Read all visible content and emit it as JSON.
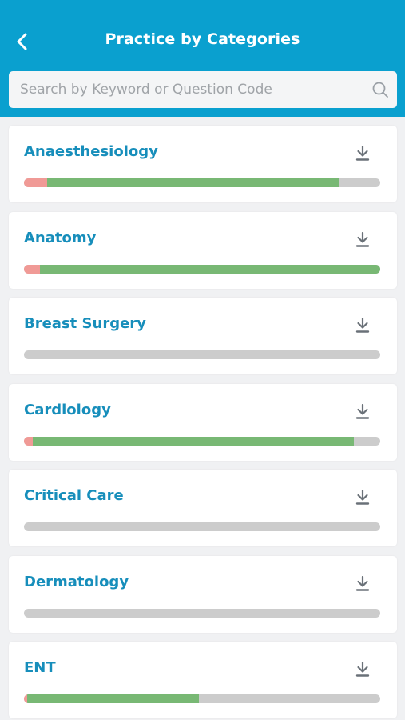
{
  "header": {
    "title": "Practice by Categories",
    "back_icon": "chevron-left-icon"
  },
  "search": {
    "placeholder": "Search by Keyword or Question Code",
    "value": "",
    "icon": "search-icon"
  },
  "colors": {
    "header": "#0aa0cf",
    "category_title": "#178ebb",
    "wrong": "#f09a96",
    "correct": "#78b874",
    "unanswered": "#cccccc"
  },
  "categories": [
    {
      "name": "Anaesthesiology",
      "icon": "download-icon",
      "progress": {
        "wrong": 0.065,
        "correct": 0.82
      }
    },
    {
      "name": "Anatomy",
      "icon": "download-icon",
      "progress": {
        "wrong": 0.045,
        "correct": 0.955
      }
    },
    {
      "name": "Breast Surgery",
      "icon": "download-icon",
      "progress": {
        "wrong": 0.0,
        "correct": 0.0
      }
    },
    {
      "name": "Cardiology",
      "icon": "download-icon",
      "progress": {
        "wrong": 0.025,
        "correct": 0.9
      }
    },
    {
      "name": "Critical Care",
      "icon": "download-icon",
      "progress": {
        "wrong": 0.0,
        "correct": 0.0
      }
    },
    {
      "name": "Dermatology",
      "icon": "download-icon",
      "progress": {
        "wrong": 0.0,
        "correct": 0.0
      }
    },
    {
      "name": "ENT",
      "icon": "download-icon",
      "progress": {
        "wrong": 0.01,
        "correct": 0.48
      }
    }
  ]
}
